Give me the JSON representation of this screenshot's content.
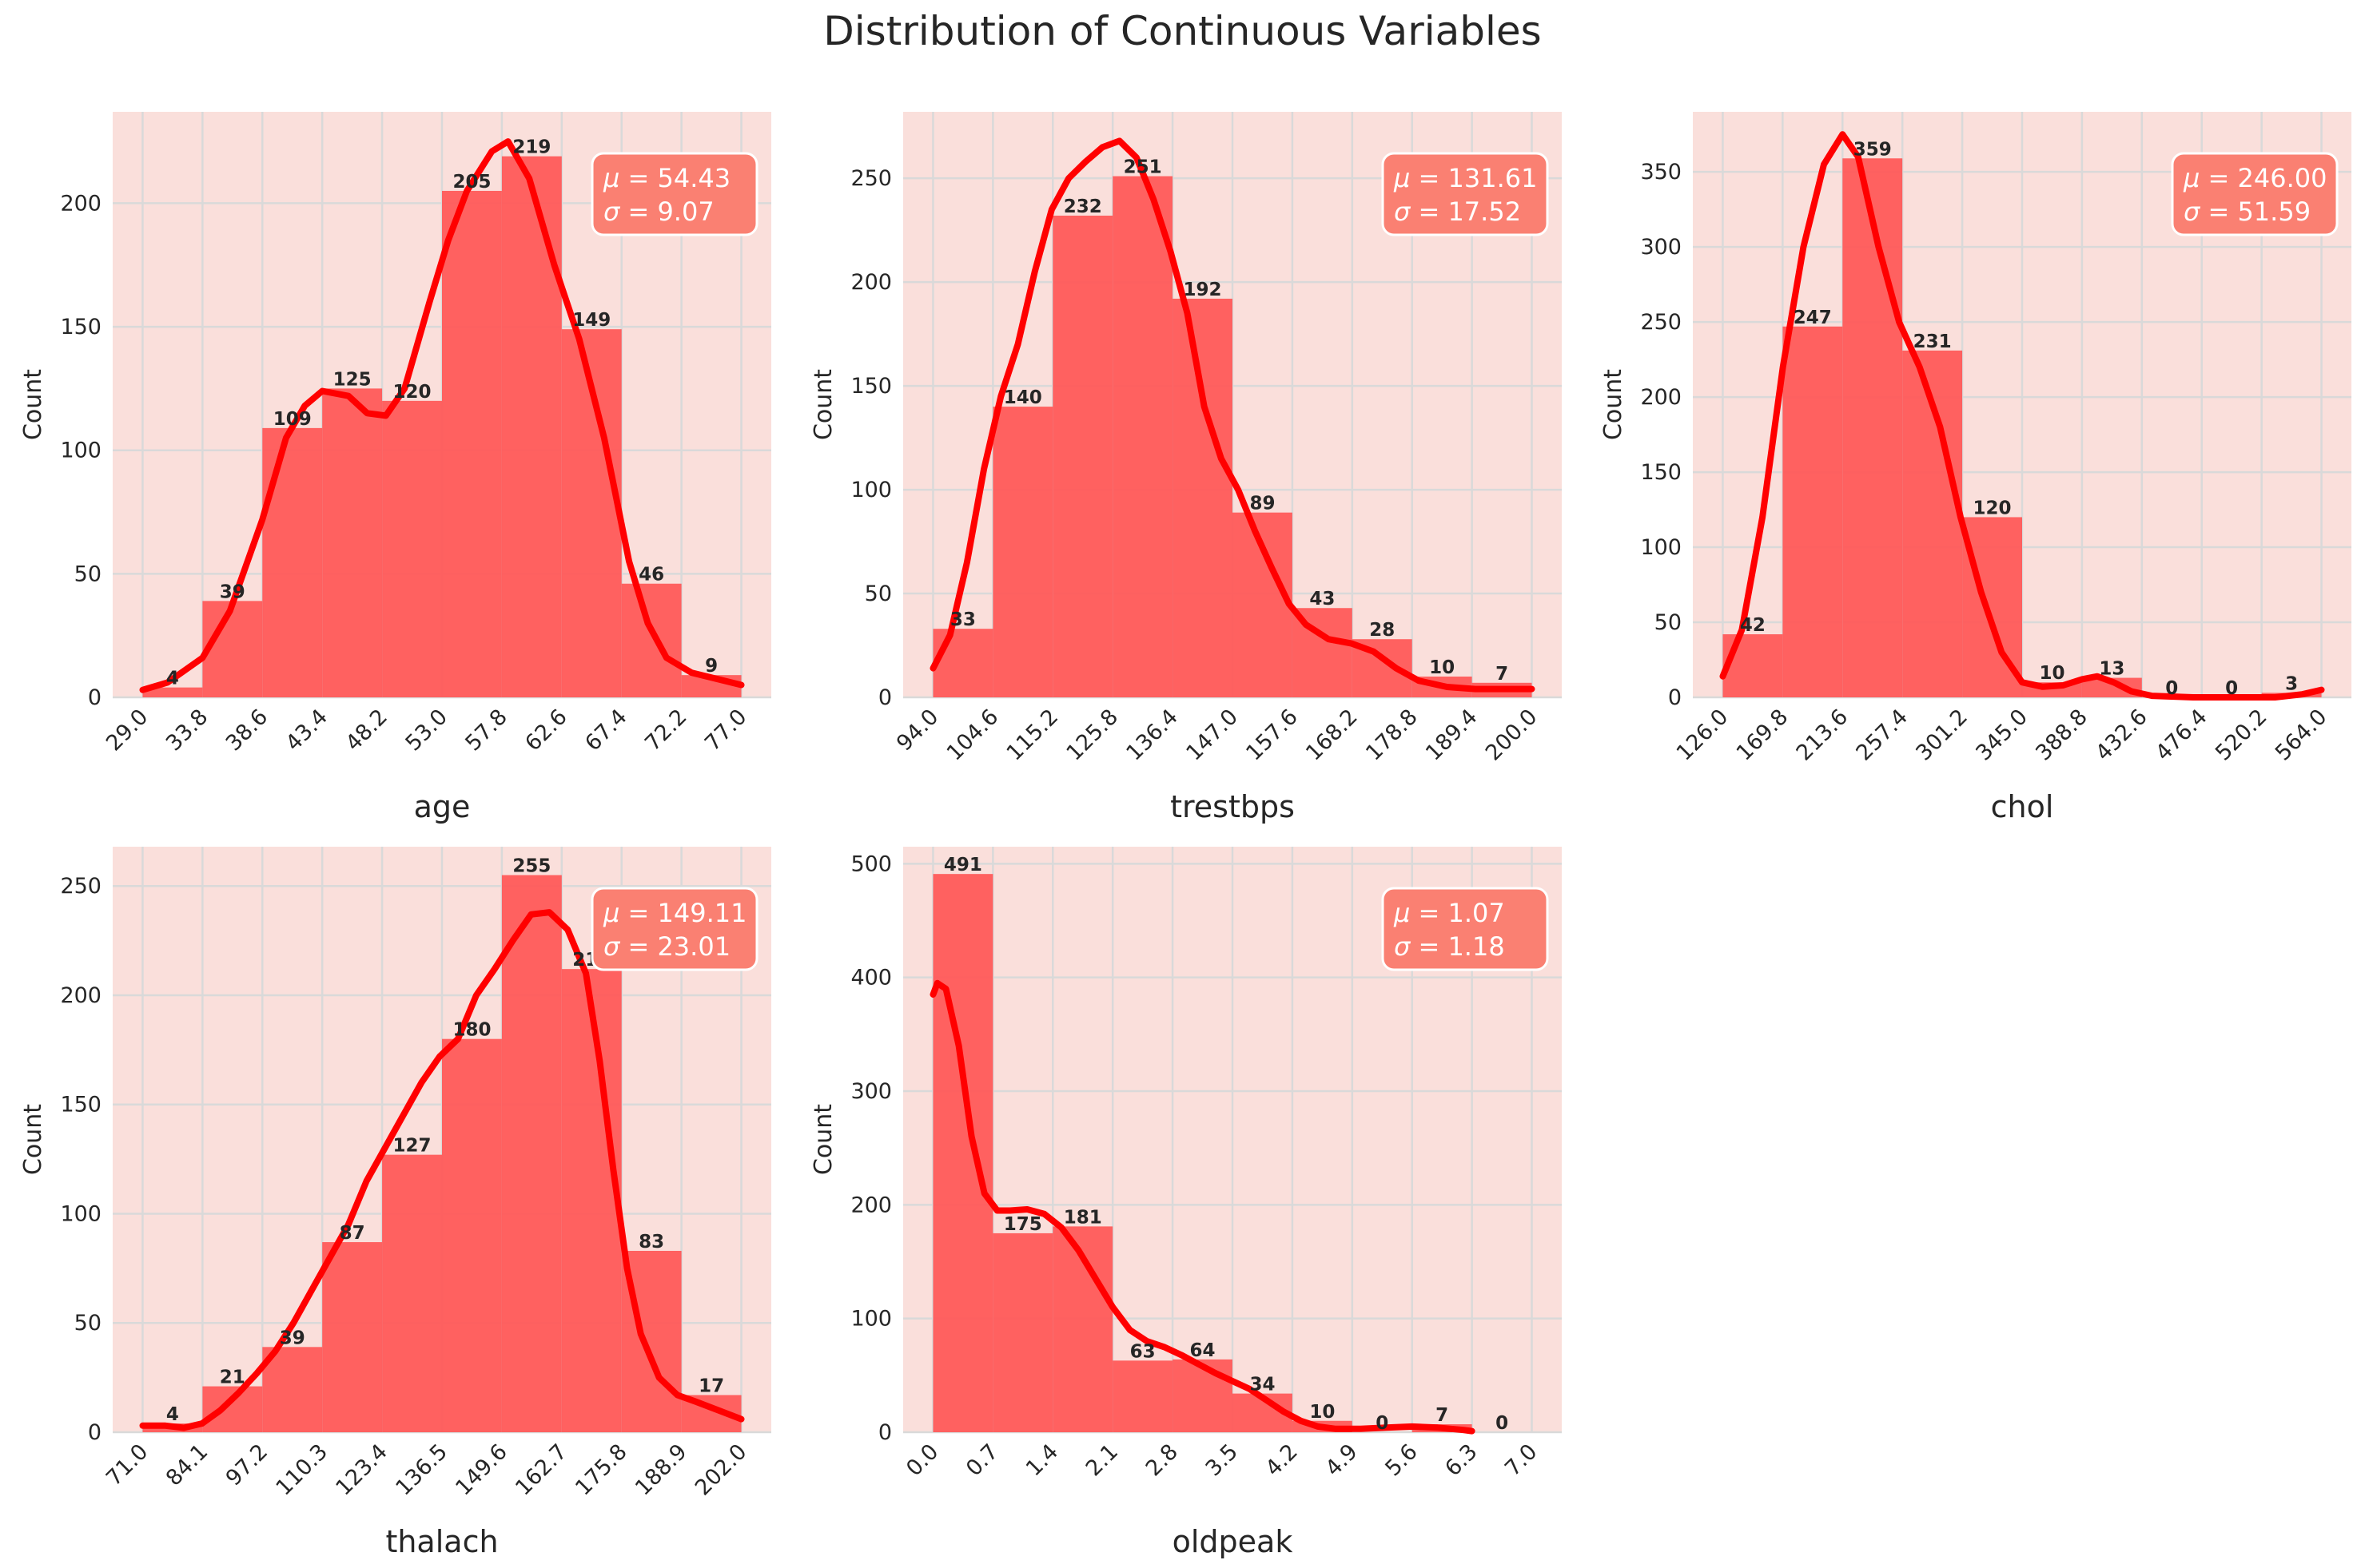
{
  "title": "Distribution of Continuous Variables",
  "colors": {
    "panel_bg": "#fadfdb",
    "bar": "#ff5a5a",
    "kde": "#ff0000",
    "stat_box": "#fa8072",
    "grid": "#d9d9d9"
  },
  "chart_data": [
    {
      "type": "bar",
      "variable": "age",
      "xlabel": "age",
      "ylabel": "Count",
      "bin_edges": [
        29.0,
        33.8,
        38.6,
        43.4,
        48.2,
        53.0,
        57.8,
        62.6,
        67.4,
        72.2,
        77.0
      ],
      "tick_labels": [
        "29.0",
        "33.8",
        "38.6",
        "43.4",
        "48.2",
        "53.0",
        "57.8",
        "62.6",
        "67.4",
        "72.2",
        "77.0"
      ],
      "counts": [
        4,
        39,
        109,
        125,
        120,
        205,
        219,
        149,
        46,
        9
      ],
      "kde": [
        [
          29,
          3
        ],
        [
          31,
          6
        ],
        [
          33.8,
          16
        ],
        [
          36,
          35
        ],
        [
          38.6,
          72
        ],
        [
          40.5,
          105
        ],
        [
          42,
          118
        ],
        [
          43.4,
          124
        ],
        [
          45.5,
          122
        ],
        [
          47,
          115
        ],
        [
          48.5,
          114
        ],
        [
          50,
          125
        ],
        [
          52,
          160
        ],
        [
          53.5,
          185
        ],
        [
          55,
          205
        ],
        [
          57,
          221
        ],
        [
          58.3,
          225
        ],
        [
          60,
          210
        ],
        [
          62,
          175
        ],
        [
          64,
          145
        ],
        [
          66,
          105
        ],
        [
          68,
          55
        ],
        [
          69.5,
          30
        ],
        [
          71,
          16
        ],
        [
          73,
          10
        ],
        [
          77,
          5
        ]
      ],
      "ylim": [
        0,
        237
      ],
      "yticks": [
        0,
        50,
        100,
        150,
        200
      ],
      "mean": "54.43",
      "std": "9.07"
    },
    {
      "type": "bar",
      "variable": "trestbps",
      "xlabel": "trestbps",
      "ylabel": "Count",
      "bin_edges": [
        94.0,
        104.6,
        115.2,
        125.8,
        136.4,
        147.0,
        157.6,
        168.2,
        178.8,
        189.4,
        200.0
      ],
      "tick_labels": [
        "94.0",
        "104.6",
        "115.2",
        "125.8",
        "136.4",
        "147.0",
        "157.6",
        "168.2",
        "178.8",
        "189.4",
        "200.0"
      ],
      "counts": [
        33,
        140,
        232,
        251,
        192,
        89,
        43,
        28,
        10,
        7
      ],
      "kde": [
        [
          94,
          14
        ],
        [
          97,
          30
        ],
        [
          100,
          65
        ],
        [
          103,
          110
        ],
        [
          106,
          145
        ],
        [
          109,
          170
        ],
        [
          112,
          205
        ],
        [
          115,
          235
        ],
        [
          118,
          250
        ],
        [
          121,
          258
        ],
        [
          124,
          265
        ],
        [
          127,
          268
        ],
        [
          130,
          260
        ],
        [
          133,
          240
        ],
        [
          136,
          215
        ],
        [
          139,
          185
        ],
        [
          142,
          140
        ],
        [
          145,
          115
        ],
        [
          148,
          100
        ],
        [
          151,
          80
        ],
        [
          154,
          62
        ],
        [
          157,
          45
        ],
        [
          160,
          35
        ],
        [
          164,
          28
        ],
        [
          168,
          26
        ],
        [
          172,
          22
        ],
        [
          176,
          14
        ],
        [
          180,
          8
        ],
        [
          185,
          5
        ],
        [
          190,
          4
        ],
        [
          195,
          4
        ],
        [
          200,
          4
        ]
      ],
      "ylim": [
        0,
        282
      ],
      "yticks": [
        0,
        50,
        100,
        150,
        200,
        250
      ],
      "mean": "131.61",
      "std": "17.52"
    },
    {
      "type": "bar",
      "variable": "chol",
      "xlabel": "chol",
      "ylabel": "Count",
      "bin_edges": [
        126.0,
        169.8,
        213.6,
        257.4,
        301.2,
        345.0,
        388.8,
        432.6,
        476.4,
        520.2,
        564.0
      ],
      "tick_labels": [
        "126.0",
        "169.8",
        "213.6",
        "257.4",
        "301.2",
        "345.0",
        "388.8",
        "432.6",
        "476.4",
        "520.2",
        "564.0"
      ],
      "counts": [
        42,
        247,
        359,
        231,
        120,
        10,
        13,
        0,
        0,
        3
      ],
      "kde": [
        [
          126,
          14
        ],
        [
          140,
          45
        ],
        [
          155,
          120
        ],
        [
          170,
          220
        ],
        [
          185,
          300
        ],
        [
          200,
          355
        ],
        [
          213.6,
          375
        ],
        [
          225,
          360
        ],
        [
          240,
          300
        ],
        [
          255,
          250
        ],
        [
          270,
          220
        ],
        [
          285,
          180
        ],
        [
          300,
          120
        ],
        [
          315,
          70
        ],
        [
          330,
          30
        ],
        [
          345,
          10
        ],
        [
          360,
          7
        ],
        [
          375,
          8
        ],
        [
          388.8,
          12
        ],
        [
          400,
          14
        ],
        [
          412,
          10
        ],
        [
          425,
          4
        ],
        [
          440,
          1
        ],
        [
          470,
          0
        ],
        [
          500,
          0
        ],
        [
          530,
          0
        ],
        [
          550,
          2
        ],
        [
          564,
          5
        ]
      ],
      "ylim": [
        0,
        390
      ],
      "yticks": [
        0,
        50,
        100,
        150,
        200,
        250,
        300,
        350
      ],
      "mean": "246.00",
      "std": "51.59"
    },
    {
      "type": "bar",
      "variable": "thalach",
      "xlabel": "thalach",
      "ylabel": "Count",
      "bin_edges": [
        71.0,
        84.1,
        97.2,
        110.3,
        123.4,
        136.5,
        149.6,
        162.7,
        175.8,
        188.9,
        202.0
      ],
      "tick_labels": [
        "71.0",
        "84.1",
        "97.2",
        "110.3",
        "123.4",
        "136.5",
        "149.6",
        "162.7",
        "175.8",
        "188.9",
        "202.0"
      ],
      "counts": [
        4,
        21,
        39,
        87,
        127,
        180,
        255,
        212,
        83,
        17
      ],
      "kde": [
        [
          71,
          3
        ],
        [
          76,
          3
        ],
        [
          80,
          2
        ],
        [
          84,
          4
        ],
        [
          88,
          10
        ],
        [
          92,
          18
        ],
        [
          96,
          27
        ],
        [
          100,
          37
        ],
        [
          104,
          50
        ],
        [
          108,
          65
        ],
        [
          112,
          80
        ],
        [
          116,
          95
        ],
        [
          120,
          115
        ],
        [
          124,
          130
        ],
        [
          128,
          145
        ],
        [
          132,
          160
        ],
        [
          136,
          172
        ],
        [
          140,
          180
        ],
        [
          144,
          200
        ],
        [
          148,
          212
        ],
        [
          152,
          225
        ],
        [
          156,
          237
        ],
        [
          160,
          238
        ],
        [
          164,
          230
        ],
        [
          168,
          210
        ],
        [
          171,
          170
        ],
        [
          174,
          120
        ],
        [
          177,
          75
        ],
        [
          180,
          45
        ],
        [
          184,
          25
        ],
        [
          188,
          17
        ],
        [
          192,
          14
        ],
        [
          197,
          10
        ],
        [
          202,
          6
        ]
      ],
      "ylim": [
        0,
        268
      ],
      "yticks": [
        0,
        50,
        100,
        150,
        200,
        250
      ],
      "mean": "149.11",
      "std": "23.01"
    },
    {
      "type": "bar",
      "variable": "oldpeak",
      "xlabel": "oldpeak",
      "ylabel": "Count",
      "bin_edges": [
        0.0,
        0.7,
        1.4,
        2.1,
        2.8,
        3.5,
        4.2,
        4.9,
        5.6,
        6.3,
        7.0
      ],
      "tick_labels": [
        "0.0",
        "0.7",
        "1.4",
        "2.1",
        "2.8",
        "3.5",
        "4.2",
        "4.9",
        "5.6",
        "6.3",
        "7.0"
      ],
      "counts": [
        491,
        175,
        181,
        63,
        64,
        34,
        10,
        0,
        7,
        0
      ],
      "kde": [
        [
          0,
          385
        ],
        [
          0.05,
          395
        ],
        [
          0.15,
          390
        ],
        [
          0.3,
          340
        ],
        [
          0.45,
          260
        ],
        [
          0.6,
          210
        ],
        [
          0.75,
          195
        ],
        [
          0.9,
          195
        ],
        [
          1.1,
          196
        ],
        [
          1.3,
          192
        ],
        [
          1.5,
          180
        ],
        [
          1.7,
          160
        ],
        [
          1.9,
          135
        ],
        [
          2.1,
          110
        ],
        [
          2.3,
          90
        ],
        [
          2.5,
          80
        ],
        [
          2.7,
          75
        ],
        [
          2.9,
          68
        ],
        [
          3.1,
          60
        ],
        [
          3.3,
          52
        ],
        [
          3.5,
          45
        ],
        [
          3.7,
          38
        ],
        [
          3.9,
          28
        ],
        [
          4.1,
          18
        ],
        [
          4.3,
          10
        ],
        [
          4.5,
          5
        ],
        [
          4.7,
          3
        ],
        [
          5.0,
          3
        ],
        [
          5.3,
          4
        ],
        [
          5.6,
          5
        ],
        [
          5.9,
          4
        ],
        [
          6.2,
          2
        ],
        [
          6.3,
          1
        ]
      ],
      "ylim": [
        0,
        515
      ],
      "yticks": [
        0,
        100,
        200,
        300,
        400,
        500
      ],
      "mean": "1.07",
      "std": "1.18"
    }
  ]
}
